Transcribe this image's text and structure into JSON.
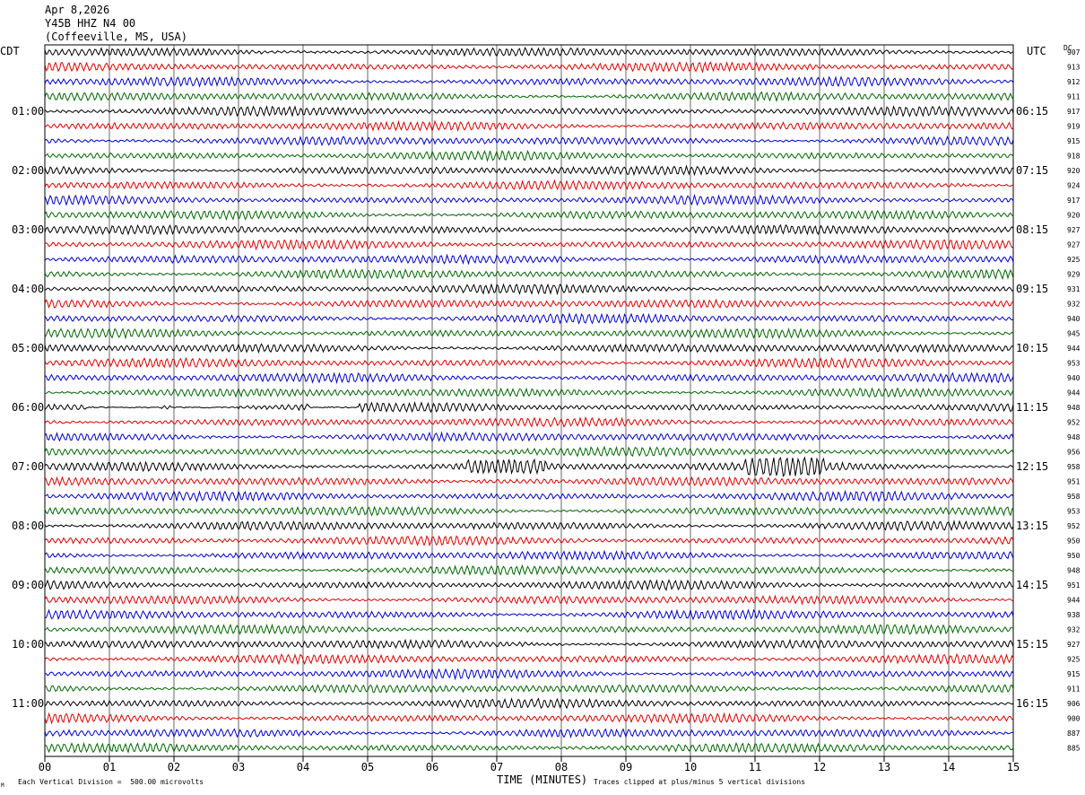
{
  "header": {
    "date": "Apr 8,2026",
    "station": "Y45B HHZ N4 00",
    "location": "(Coffeeville, MS, USA)"
  },
  "left_tz": "CDT",
  "right_tz": "UTC",
  "dc_label": "DC",
  "footer": {
    "scale_note": "Each Vertical Division =  500.00 microvolts",
    "clip_note": "Traces clipped at plus/minus 5 vertical divisions",
    "corner_mark": "M"
  },
  "colors": {
    "trace_cycle": [
      "#000000",
      "#dd0000",
      "#0000cc",
      "#006600"
    ],
    "grid": "#000000"
  },
  "chart_data": {
    "type": "line",
    "title": "",
    "xlabel": "TIME (MINUTES)",
    "ylabel": "",
    "xlim": [
      0,
      15
    ],
    "grid": true,
    "x_ticks": [
      "00",
      "01",
      "02",
      "03",
      "04",
      "05",
      "06",
      "07",
      "08",
      "09",
      "10",
      "11",
      "12",
      "13",
      "14",
      "15"
    ],
    "left_hour_labels": [
      "01:00",
      "02:00",
      "03:00",
      "04:00",
      "05:00",
      "06:00",
      "07:00",
      "08:00",
      "09:00",
      "10:00",
      "11:00"
    ],
    "right_hour_labels": [
      "06:15",
      "07:15",
      "08:15",
      "09:15",
      "10:15",
      "11:15",
      "12:15",
      "13:15",
      "14:15",
      "15:15",
      "16:15"
    ],
    "trace_count": 48,
    "dc_offsets": [
      907,
      913,
      912,
      911,
      917,
      919,
      915,
      918,
      920,
      924,
      917,
      920,
      927,
      927,
      925,
      929,
      931,
      932,
      940,
      945,
      944,
      953,
      940,
      944,
      948,
      952,
      948,
      956,
      958,
      951,
      958,
      953,
      952,
      950,
      950,
      948,
      951,
      944,
      938,
      932,
      927,
      925,
      915,
      911,
      906,
      900,
      887,
      885
    ]
  }
}
